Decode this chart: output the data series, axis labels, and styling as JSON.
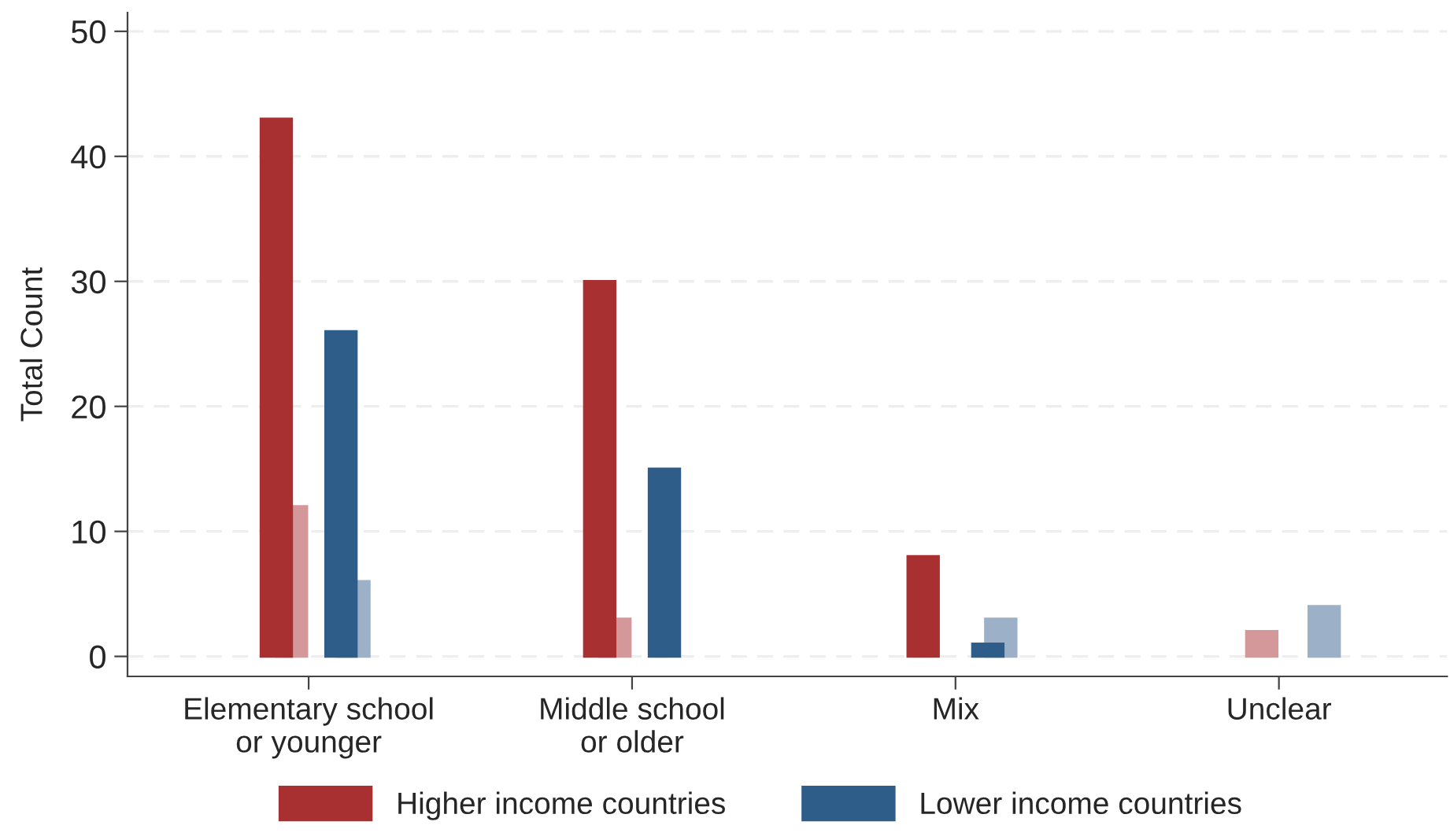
{
  "chart_data": {
    "type": "bar",
    "ylabel": "Total Count",
    "categories": [
      "Elementary school\nor younger",
      "Middle school\nor older",
      "Mix",
      "Unclear"
    ],
    "series": [
      {
        "name": "Higher income countries",
        "color": "#a93030",
        "values": [
          43,
          30,
          8,
          null
        ]
      },
      {
        "color": "#d4979a",
        "values": [
          12,
          3,
          null,
          2
        ]
      },
      {
        "name": "Lower income countries",
        "color": "#2f5d8a",
        "values": [
          26,
          15,
          1,
          null
        ]
      },
      {
        "color": "#9cb0c8",
        "values": [
          6,
          null,
          3,
          4
        ]
      }
    ],
    "ylim": [
      -1.6,
      51.5
    ],
    "yticks": [
      0,
      10,
      20,
      30,
      40,
      50
    ],
    "grid": "y",
    "legend": "bottom"
  }
}
